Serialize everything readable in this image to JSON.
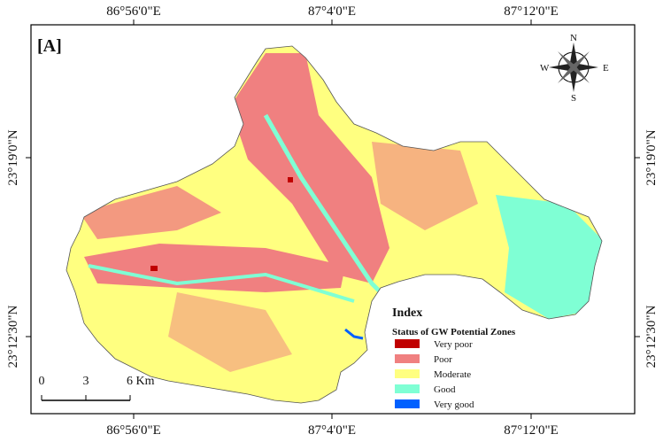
{
  "map": {
    "panel_label": "[A]",
    "top_labels": [
      "86°56'0\"E",
      "87°4'0\"E",
      "87°12'0\"E"
    ],
    "bottom_labels": [
      "86°56'0\"E",
      "87°4'0\"E",
      "87°12'0\"E"
    ],
    "left_labels": [
      "23°19'0\"N",
      "23°12'30\"N"
    ],
    "right_labels": [
      "23°19'0\"N",
      "23°12'30\"N"
    ],
    "north_arrow": {
      "n": "N",
      "e": "E",
      "s": "S",
      "w": "W"
    },
    "legend": {
      "title": "Index",
      "subtitle": "Status of GW Potential Zones",
      "items": [
        {
          "label": "Very poor",
          "color": "#c00000"
        },
        {
          "label": "Poor",
          "color": "#f08080"
        },
        {
          "label": "Moderate",
          "color": "#ffff80"
        },
        {
          "label": "Good",
          "color": "#7fffd4"
        },
        {
          "label": "Very good",
          "color": "#0060ff"
        }
      ]
    },
    "scale_bar": [
      "0",
      "3",
      "6 Km"
    ]
  }
}
